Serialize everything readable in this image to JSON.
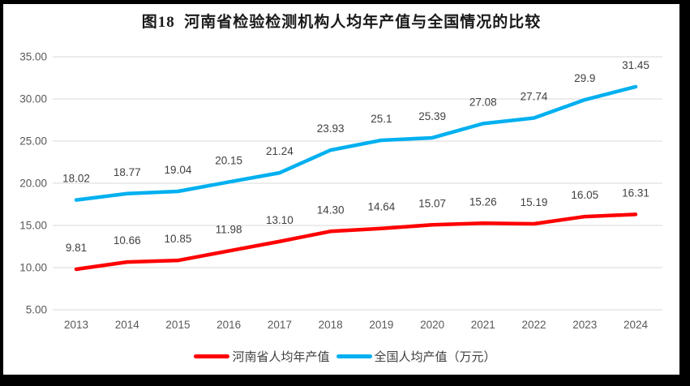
{
  "chart": {
    "title": "图18  河南省检验检测机构人均年产值与全国情况的比较"
  },
  "chart_data": {
    "type": "line",
    "title": "图18  河南省检验检测机构人均年产值与全国情况的比较",
    "categories": [
      "2013",
      "2014",
      "2015",
      "2016",
      "2017",
      "2018",
      "2019",
      "2020",
      "2021",
      "2022",
      "2023",
      "2024"
    ],
    "series": [
      {
        "name": "河南省人均年产值",
        "color": "#FF0000",
        "values": [
          9.81,
          10.66,
          10.85,
          11.98,
          13.1,
          14.3,
          14.64,
          15.07,
          15.26,
          15.19,
          16.05,
          16.31
        ],
        "labels": [
          "9.81",
          "10.66",
          "10.85",
          "11.98",
          "13.10",
          "14.30",
          "14.64",
          "15.07",
          "15.26",
          "15.19",
          "16.05",
          "16.31"
        ]
      },
      {
        "name": "全国人均产值（万元）",
        "color": "#00B0F0",
        "values": [
          18.02,
          18.77,
          19.04,
          20.15,
          21.24,
          23.93,
          25.1,
          25.39,
          27.08,
          27.74,
          29.9,
          31.45
        ],
        "labels": [
          "18.02",
          "18.77",
          "19.04",
          "20.15",
          "21.24",
          "23.93",
          "25.1",
          "25.39",
          "27.08",
          "27.74",
          "29.9",
          "31.45"
        ]
      }
    ],
    "ylim": [
      5,
      35
    ],
    "ytick_step": 5,
    "yticks": [
      "5.00",
      "10.00",
      "15.00",
      "20.00",
      "25.00",
      "30.00",
      "35.00"
    ],
    "grid": true,
    "legend_position": "bottom",
    "colors": {
      "gridline": "#D9D9D9",
      "axis_text": "#595959",
      "data_label_text": "#404040"
    }
  }
}
